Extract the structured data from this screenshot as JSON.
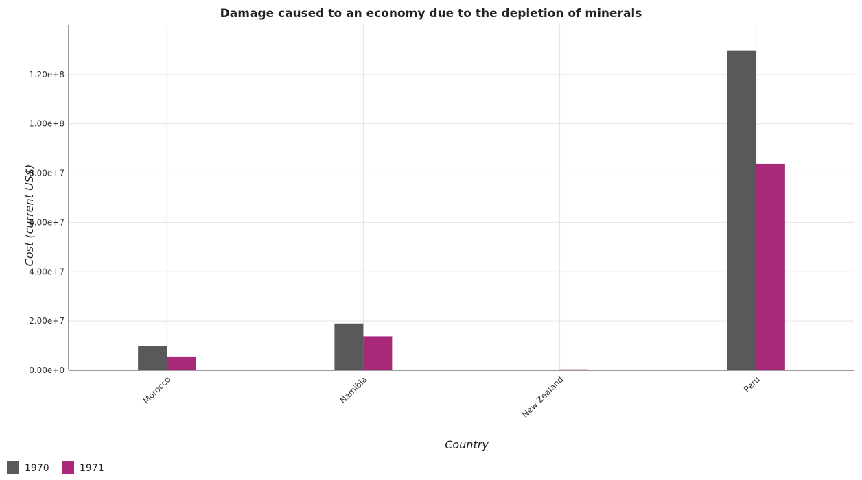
{
  "chart_data": {
    "type": "bar",
    "title": "Damage caused to an economy due to the depletion of minerals",
    "xlabel": "Country",
    "ylabel": "Cost (current US$)",
    "categories": [
      "Morocco",
      "Namibia",
      "New Zealand",
      "Peru"
    ],
    "series": [
      {
        "name": "1970",
        "color": "#595959",
        "values": [
          9800000,
          19000000,
          150000,
          129800000
        ]
      },
      {
        "name": "1971",
        "color": "#a8287a",
        "values": [
          5600000,
          13800000,
          350000,
          83800000
        ]
      }
    ],
    "ylim": [
      0,
      140000000
    ],
    "yticks": [
      0,
      20000000,
      40000000,
      60000000,
      80000000,
      100000000,
      120000000
    ],
    "ytick_labels": [
      "0.00e+0",
      "2.00e+7",
      "4.00e+7",
      "6.00e+7",
      "8.00e+7",
      "1.00e+8",
      "1.20e+8"
    ],
    "grid": true,
    "legend_position": "bottom-left"
  }
}
